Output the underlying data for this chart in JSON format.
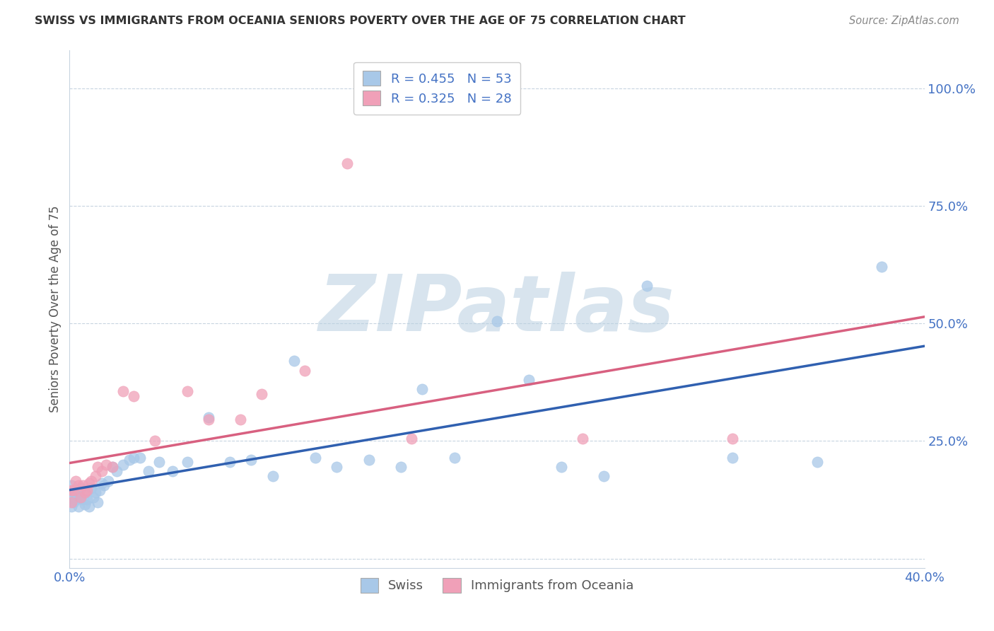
{
  "title": "SWISS VS IMMIGRANTS FROM OCEANIA SENIORS POVERTY OVER THE AGE OF 75 CORRELATION CHART",
  "source": "Source: ZipAtlas.com",
  "ylabel": "Seniors Poverty Over the Age of 75",
  "xlim": [
    0.0,
    0.4
  ],
  "ylim": [
    -0.02,
    1.08
  ],
  "xticks": [
    0.0,
    0.1,
    0.2,
    0.3,
    0.4
  ],
  "yticks_right": [
    0.0,
    0.25,
    0.5,
    0.75,
    1.0
  ],
  "yticklabels_right": [
    "",
    "25.0%",
    "50.0%",
    "75.0%",
    "100.0%"
  ],
  "swiss_R": 0.455,
  "swiss_N": 53,
  "oceania_R": 0.325,
  "oceania_N": 28,
  "swiss_color": "#a8c8e8",
  "oceania_color": "#f0a0b8",
  "swiss_line_color": "#3060b0",
  "oceania_line_color": "#d86080",
  "legend_label_swiss": "Swiss",
  "legend_label_oceania": "Immigrants from Oceania",
  "swiss_x": [
    0.001,
    0.001,
    0.001,
    0.002,
    0.002,
    0.003,
    0.003,
    0.004,
    0.004,
    0.005,
    0.005,
    0.006,
    0.007,
    0.007,
    0.008,
    0.009,
    0.01,
    0.011,
    0.012,
    0.013,
    0.014,
    0.015,
    0.016,
    0.018,
    0.02,
    0.022,
    0.025,
    0.028,
    0.03,
    0.033,
    0.037,
    0.042,
    0.048,
    0.055,
    0.065,
    0.075,
    0.085,
    0.095,
    0.105,
    0.115,
    0.125,
    0.14,
    0.155,
    0.165,
    0.18,
    0.2,
    0.215,
    0.23,
    0.25,
    0.27,
    0.31,
    0.35,
    0.38
  ],
  "swiss_y": [
    0.155,
    0.13,
    0.11,
    0.14,
    0.12,
    0.145,
    0.125,
    0.13,
    0.11,
    0.15,
    0.13,
    0.125,
    0.14,
    0.115,
    0.125,
    0.11,
    0.15,
    0.13,
    0.14,
    0.12,
    0.145,
    0.16,
    0.155,
    0.165,
    0.195,
    0.185,
    0.2,
    0.21,
    0.215,
    0.215,
    0.185,
    0.205,
    0.185,
    0.205,
    0.3,
    0.205,
    0.21,
    0.175,
    0.42,
    0.215,
    0.195,
    0.21,
    0.195,
    0.36,
    0.215,
    0.505,
    0.38,
    0.195,
    0.175,
    0.58,
    0.215,
    0.205,
    0.62
  ],
  "oceania_x": [
    0.001,
    0.001,
    0.002,
    0.003,
    0.004,
    0.005,
    0.006,
    0.007,
    0.008,
    0.009,
    0.01,
    0.012,
    0.013,
    0.015,
    0.017,
    0.02,
    0.025,
    0.03,
    0.04,
    0.055,
    0.065,
    0.08,
    0.09,
    0.11,
    0.13,
    0.16,
    0.24,
    0.31
  ],
  "oceania_y": [
    0.145,
    0.12,
    0.145,
    0.165,
    0.155,
    0.13,
    0.155,
    0.14,
    0.145,
    0.16,
    0.165,
    0.175,
    0.195,
    0.185,
    0.2,
    0.195,
    0.355,
    0.345,
    0.25,
    0.355,
    0.295,
    0.295,
    0.35,
    0.4,
    0.84,
    0.255,
    0.255,
    0.255
  ],
  "watermark_text": "ZIPatlas",
  "watermark_color": "#b8cfe0",
  "watermark_alpha": 0.55,
  "background_color": "#ffffff",
  "grid_color": "#c8d4e0",
  "title_color": "#333333",
  "source_color": "#888888",
  "axis_label_color": "#555555",
  "dot_size": 120,
  "dot_alpha": 0.75
}
